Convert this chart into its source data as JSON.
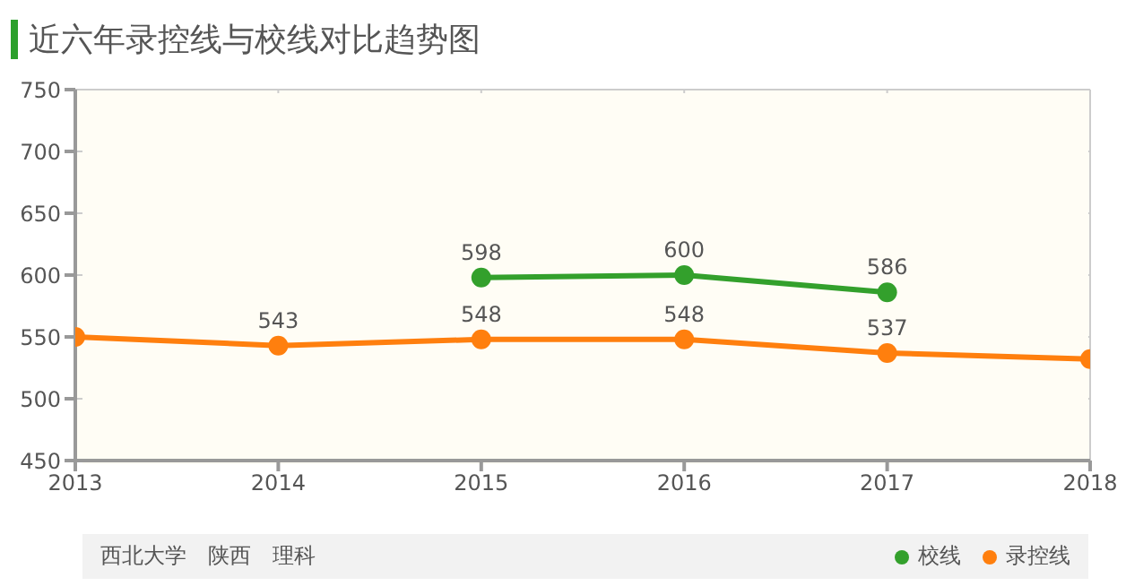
{
  "chart_data": {
    "type": "line",
    "title": "近六年录控线与校线对比趋势图",
    "x": [
      2013,
      2014,
      2015,
      2016,
      2017,
      2018
    ],
    "xlim": [
      2013,
      2018
    ],
    "xticks": [
      2013,
      2014,
      2015,
      2016,
      2017,
      2018
    ],
    "ylim": [
      450,
      750
    ],
    "yticks": [
      450,
      500,
      550,
      600,
      650,
      700,
      750
    ],
    "grid": true,
    "legend": "bottom right",
    "marker": "circle",
    "line_style": "solid",
    "series": [
      {
        "name": "校线",
        "color": "#33a02c",
        "values": [
          null,
          null,
          598,
          600,
          586,
          null
        ],
        "value_labels": [
          null,
          null,
          "598",
          "600",
          "586",
          null
        ]
      },
      {
        "name": "录控线",
        "color": "#ff7f0e",
        "values": [
          550,
          543,
          548,
          548,
          537,
          532
        ],
        "value_labels": [
          null,
          "543",
          "548",
          "548",
          "537",
          null
        ]
      }
    ],
    "annotations": [
      "西北大学　陕西　理科"
    ]
  }
}
